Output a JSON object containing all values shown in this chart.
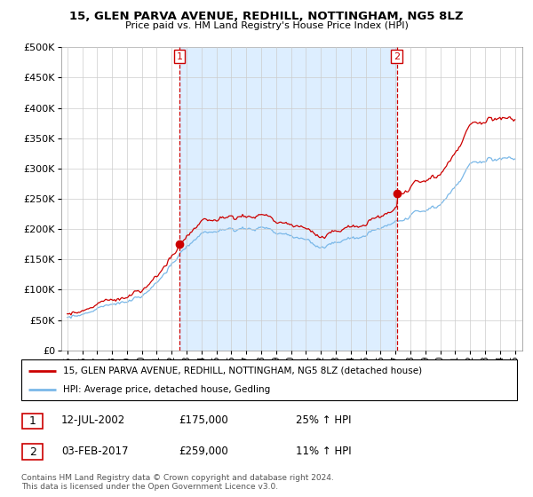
{
  "title": "15, GLEN PARVA AVENUE, REDHILL, NOTTINGHAM, NG5 8LZ",
  "subtitle": "Price paid vs. HM Land Registry's House Price Index (HPI)",
  "legend_line1": "15, GLEN PARVA AVENUE, REDHILL, NOTTINGHAM, NG5 8LZ (detached house)",
  "legend_line2": "HPI: Average price, detached house, Gedling",
  "table_rows": [
    {
      "num": "1",
      "date": "12-JUL-2002",
      "price": "£175,000",
      "pct": "25% ↑ HPI"
    },
    {
      "num": "2",
      "date": "03-FEB-2017",
      "price": "£259,000",
      "pct": "11% ↑ HPI"
    }
  ],
  "footer": "Contains HM Land Registry data © Crown copyright and database right 2024.\nThis data is licensed under the Open Government Licence v3.0.",
  "hpi_color": "#7ab8e8",
  "sale_color": "#cc0000",
  "shade_color": "#ddeeff",
  "marker1_x": 2002.53,
  "marker1_y": 175000,
  "marker2_x": 2017.09,
  "marker2_y": 259000,
  "vline1_x": 2002.53,
  "vline2_x": 2017.09,
  "ylim": [
    0,
    500000
  ],
  "xlim_start": 1994.6,
  "xlim_end": 2025.5,
  "yticks": [
    0,
    50000,
    100000,
    150000,
    200000,
    250000,
    300000,
    350000,
    400000,
    450000,
    500000
  ],
  "xticks": [
    1995,
    1996,
    1997,
    1998,
    1999,
    2000,
    2001,
    2002,
    2003,
    2004,
    2005,
    2006,
    2007,
    2008,
    2009,
    2010,
    2011,
    2012,
    2013,
    2014,
    2015,
    2016,
    2017,
    2018,
    2019,
    2020,
    2021,
    2022,
    2023,
    2024,
    2025
  ]
}
